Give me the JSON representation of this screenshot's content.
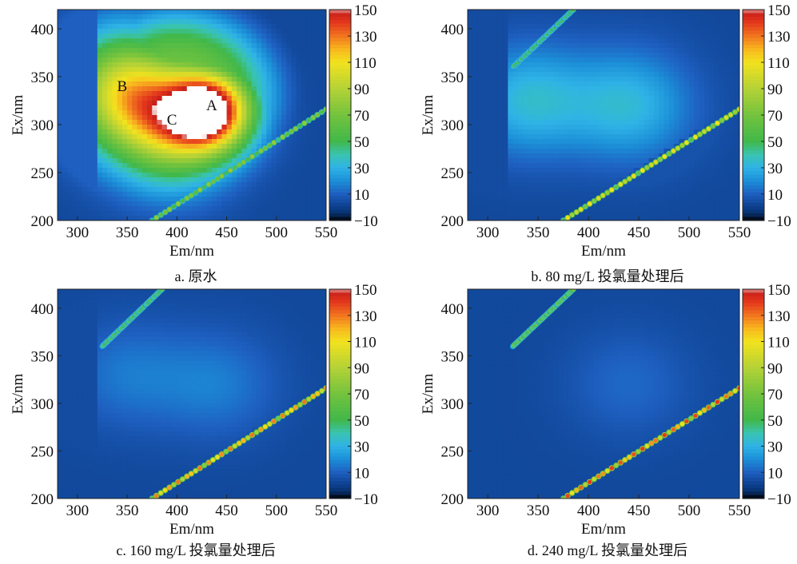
{
  "colors": {
    "background": "#ffffff",
    "ramp": [
      {
        "v": -10,
        "c": "#000000"
      },
      {
        "v": -5,
        "c": "#08306b"
      },
      {
        "v": 0,
        "c": "#0c3f8c"
      },
      {
        "v": 10,
        "c": "#1e5fc0"
      },
      {
        "v": 20,
        "c": "#1c8fd8"
      },
      {
        "v": 30,
        "c": "#2fb3e6"
      },
      {
        "v": 40,
        "c": "#39c4b0"
      },
      {
        "v": 50,
        "c": "#41b84a"
      },
      {
        "v": 70,
        "c": "#74c33d"
      },
      {
        "v": 90,
        "c": "#b5d236"
      },
      {
        "v": 110,
        "c": "#f2e21e"
      },
      {
        "v": 120,
        "c": "#f8b61e"
      },
      {
        "v": 130,
        "c": "#f1741f"
      },
      {
        "v": 140,
        "c": "#e3381c"
      },
      {
        "v": 148,
        "c": "#c8201a"
      },
      {
        "v": 150,
        "c": "#ffffff"
      }
    ]
  },
  "chart_data": [
    {
      "type": "heatmap",
      "caption": "a. 原水",
      "xlabel": "Em/nm",
      "ylabel": "Ex/nm",
      "xlim": [
        280,
        550
      ],
      "ylim": [
        200,
        420
      ],
      "xticks": [
        300,
        350,
        400,
        450,
        500,
        550
      ],
      "yticks": [
        200,
        250,
        300,
        350,
        400
      ],
      "colorbar": {
        "min": -10,
        "max": 150,
        "ticks": [
          150,
          130,
          110,
          90,
          70,
          50,
          30,
          10,
          -10
        ]
      },
      "peaks": [
        {
          "label": "A",
          "em": 435,
          "ex": 315,
          "intensity": 140
        },
        {
          "label": "B",
          "em": 345,
          "ex": 335,
          "intensity": 92
        },
        {
          "label": "C",
          "em": 395,
          "ex": 300,
          "intensity": 85
        }
      ],
      "scatter_line": {
        "em_start": 375,
        "em_end": 550,
        "ex_start": 200,
        "ex_end": 316,
        "intensity": 80
      }
    },
    {
      "type": "heatmap",
      "caption": "b. 80 mg/L 投氯量处理后",
      "xlabel": "Em/nm",
      "ylabel": "Ex/nm",
      "xlim": [
        280,
        550
      ],
      "ylim": [
        200,
        420
      ],
      "xticks": [
        300,
        350,
        400,
        450,
        500,
        550
      ],
      "yticks": [
        200,
        250,
        300,
        350,
        400
      ],
      "colorbar": {
        "min": -10,
        "max": 150,
        "ticks": [
          150,
          130,
          110,
          90,
          70,
          50,
          30,
          10,
          -10
        ]
      },
      "peaks": [
        {
          "em": 440,
          "ex": 320,
          "intensity": 32
        },
        {
          "em": 340,
          "ex": 325,
          "intensity": 33
        }
      ],
      "scatter_line": {
        "em_start": 375,
        "em_end": 550,
        "ex_start": 200,
        "ex_end": 316,
        "intensity": 110
      },
      "second_order_line": {
        "em_start": 325,
        "em_end": 385,
        "ex_start": 360,
        "ex_end": 420,
        "intensity": 60
      }
    },
    {
      "type": "heatmap",
      "caption": "c. 160 mg/L 投氯量处理后",
      "xlabel": "Em/nm",
      "ylabel": "Ex/nm",
      "xlim": [
        280,
        550
      ],
      "ylim": [
        200,
        420
      ],
      "xticks": [
        300,
        350,
        400,
        450,
        500,
        550
      ],
      "yticks": [
        200,
        250,
        300,
        350,
        400
      ],
      "colorbar": {
        "min": -10,
        "max": 150,
        "ticks": [
          150,
          130,
          110,
          90,
          70,
          50,
          30,
          10,
          -10
        ]
      },
      "peaks": [
        {
          "em": 440,
          "ex": 320,
          "intensity": 16
        },
        {
          "em": 350,
          "ex": 330,
          "intensity": 15
        }
      ],
      "scatter_line": {
        "em_start": 375,
        "em_end": 550,
        "ex_start": 200,
        "ex_end": 316,
        "intensity": 130
      },
      "second_order_line": {
        "em_start": 325,
        "em_end": 385,
        "ex_start": 360,
        "ex_end": 420,
        "intensity": 65
      }
    },
    {
      "type": "heatmap",
      "caption": "d. 240 mg/L 投氯量处理后",
      "xlabel": "Em/nm",
      "ylabel": "Ex/nm",
      "xlim": [
        280,
        550
      ],
      "ylim": [
        200,
        420
      ],
      "xticks": [
        300,
        350,
        400,
        450,
        500,
        550
      ],
      "yticks": [
        200,
        250,
        300,
        350,
        400
      ],
      "colorbar": {
        "min": -10,
        "max": 150,
        "ticks": [
          150,
          130,
          110,
          90,
          70,
          50,
          30,
          10,
          -10
        ]
      },
      "peaks": [
        {
          "em": 440,
          "ex": 320,
          "intensity": 12
        }
      ],
      "scatter_line": {
        "em_start": 375,
        "em_end": 550,
        "ex_start": 200,
        "ex_end": 316,
        "intensity": 140
      },
      "second_order_line": {
        "em_start": 325,
        "em_end": 385,
        "ex_start": 360,
        "ex_end": 420,
        "intensity": 75
      }
    }
  ]
}
